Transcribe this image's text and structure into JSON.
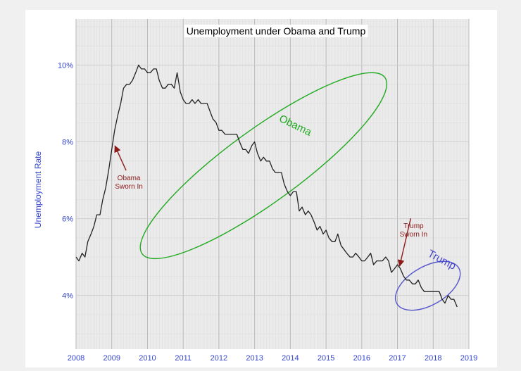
{
  "chart_data": {
    "type": "line",
    "title": "Unemployment under Obama and Trump",
    "xlabel": "",
    "ylabel": "Unemployment Rate",
    "xlim": [
      2008.0,
      2019.0
    ],
    "ylim": [
      2.6,
      11.2
    ],
    "x_ticks": [
      2008,
      2009,
      2010,
      2011,
      2012,
      2013,
      2014,
      2015,
      2016,
      2017,
      2018,
      2019
    ],
    "y_ticks": [
      {
        "value": 4,
        "label": "4%"
      },
      {
        "value": 6,
        "label": "6%"
      },
      {
        "value": 8,
        "label": "8%"
      },
      {
        "value": 10,
        "label": "10%"
      }
    ],
    "grid": true,
    "series": [
      {
        "values": [
          [
            2008.0,
            5.0
          ],
          [
            2008.08,
            4.9
          ],
          [
            2008.17,
            5.1
          ],
          [
            2008.25,
            5.0
          ],
          [
            2008.33,
            5.4
          ],
          [
            2008.42,
            5.6
          ],
          [
            2008.5,
            5.8
          ],
          [
            2008.58,
            6.1
          ],
          [
            2008.67,
            6.1
          ],
          [
            2008.75,
            6.5
          ],
          [
            2008.83,
            6.8
          ],
          [
            2008.92,
            7.3
          ],
          [
            2009.0,
            7.8
          ],
          [
            2009.08,
            8.3
          ],
          [
            2009.17,
            8.7
          ],
          [
            2009.25,
            9.0
          ],
          [
            2009.33,
            9.4
          ],
          [
            2009.42,
            9.5
          ],
          [
            2009.5,
            9.5
          ],
          [
            2009.58,
            9.6
          ],
          [
            2009.67,
            9.8
          ],
          [
            2009.75,
            10.0
          ],
          [
            2009.83,
            9.9
          ],
          [
            2009.92,
            9.9
          ],
          [
            2010.0,
            9.8
          ],
          [
            2010.08,
            9.8
          ],
          [
            2010.17,
            9.9
          ],
          [
            2010.25,
            9.9
          ],
          [
            2010.33,
            9.6
          ],
          [
            2010.42,
            9.4
          ],
          [
            2010.5,
            9.4
          ],
          [
            2010.58,
            9.5
          ],
          [
            2010.67,
            9.5
          ],
          [
            2010.75,
            9.4
          ],
          [
            2010.83,
            9.8
          ],
          [
            2010.92,
            9.3
          ],
          [
            2011.0,
            9.1
          ],
          [
            2011.08,
            9.0
          ],
          [
            2011.17,
            9.0
          ],
          [
            2011.25,
            9.1
          ],
          [
            2011.33,
            9.0
          ],
          [
            2011.42,
            9.1
          ],
          [
            2011.5,
            9.0
          ],
          [
            2011.58,
            9.0
          ],
          [
            2011.67,
            9.0
          ],
          [
            2011.75,
            8.8
          ],
          [
            2011.83,
            8.6
          ],
          [
            2011.92,
            8.5
          ],
          [
            2012.0,
            8.3
          ],
          [
            2012.08,
            8.3
          ],
          [
            2012.17,
            8.2
          ],
          [
            2012.25,
            8.2
          ],
          [
            2012.33,
            8.2
          ],
          [
            2012.42,
            8.2
          ],
          [
            2012.5,
            8.2
          ],
          [
            2012.58,
            8.0
          ],
          [
            2012.67,
            7.8
          ],
          [
            2012.75,
            7.8
          ],
          [
            2012.83,
            7.7
          ],
          [
            2012.92,
            7.9
          ],
          [
            2013.0,
            8.0
          ],
          [
            2013.08,
            7.7
          ],
          [
            2013.17,
            7.5
          ],
          [
            2013.25,
            7.6
          ],
          [
            2013.33,
            7.5
          ],
          [
            2013.42,
            7.5
          ],
          [
            2013.5,
            7.3
          ],
          [
            2013.58,
            7.2
          ],
          [
            2013.67,
            7.2
          ],
          [
            2013.75,
            7.2
          ],
          [
            2013.83,
            6.9
          ],
          [
            2013.92,
            6.7
          ],
          [
            2014.0,
            6.6
          ],
          [
            2014.08,
            6.7
          ],
          [
            2014.17,
            6.7
          ],
          [
            2014.25,
            6.2
          ],
          [
            2014.33,
            6.3
          ],
          [
            2014.42,
            6.1
          ],
          [
            2014.5,
            6.2
          ],
          [
            2014.58,
            6.1
          ],
          [
            2014.67,
            5.9
          ],
          [
            2014.75,
            5.7
          ],
          [
            2014.83,
            5.8
          ],
          [
            2014.92,
            5.6
          ],
          [
            2015.0,
            5.7
          ],
          [
            2015.08,
            5.5
          ],
          [
            2015.17,
            5.4
          ],
          [
            2015.25,
            5.4
          ],
          [
            2015.33,
            5.6
          ],
          [
            2015.42,
            5.3
          ],
          [
            2015.5,
            5.2
          ],
          [
            2015.58,
            5.1
          ],
          [
            2015.67,
            5.0
          ],
          [
            2015.75,
            5.0
          ],
          [
            2015.83,
            5.1
          ],
          [
            2015.92,
            5.0
          ],
          [
            2016.0,
            4.9
          ],
          [
            2016.08,
            4.9
          ],
          [
            2016.17,
            5.0
          ],
          [
            2016.25,
            5.1
          ],
          [
            2016.33,
            4.8
          ],
          [
            2016.42,
            4.9
          ],
          [
            2016.5,
            4.9
          ],
          [
            2016.58,
            4.9
          ],
          [
            2016.67,
            5.0
          ],
          [
            2016.75,
            4.9
          ],
          [
            2016.83,
            4.6
          ],
          [
            2016.92,
            4.7
          ],
          [
            2017.0,
            4.8
          ],
          [
            2017.08,
            4.7
          ],
          [
            2017.17,
            4.5
          ],
          [
            2017.25,
            4.4
          ],
          [
            2017.33,
            4.4
          ],
          [
            2017.42,
            4.3
          ],
          [
            2017.5,
            4.3
          ],
          [
            2017.58,
            4.4
          ],
          [
            2017.67,
            4.2
          ],
          [
            2017.75,
            4.1
          ],
          [
            2017.83,
            4.1
          ],
          [
            2017.92,
            4.1
          ],
          [
            2018.0,
            4.1
          ],
          [
            2018.08,
            4.1
          ],
          [
            2018.17,
            4.1
          ],
          [
            2018.25,
            3.9
          ],
          [
            2018.33,
            3.8
          ],
          [
            2018.42,
            4.0
          ],
          [
            2018.5,
            3.9
          ],
          [
            2018.58,
            3.9
          ],
          [
            2018.67,
            3.7
          ]
        ]
      }
    ],
    "annotations": [
      {
        "lines": [
          "Obama",
          "Sworn In"
        ],
        "point_to": [
          2009.05,
          7.95
        ],
        "text_at": [
          2009.48,
          7.0
        ],
        "color": "#8b1a1a"
      },
      {
        "lines": [
          "Trump",
          "Sworn In"
        ],
        "point_to": [
          2017.0,
          4.8
        ],
        "text_at": [
          2017.45,
          5.75
        ],
        "color": "#8b1a1a"
      }
    ],
    "region_labels": [
      {
        "text": "Obama",
        "at": [
          2014.1,
          8.35
        ],
        "rotate": 26,
        "color": "#22aa22"
      },
      {
        "text": "Trump",
        "at": [
          2018.2,
          4.85
        ],
        "rotate": 28,
        "color": "#4444cc"
      }
    ],
    "ellipses": [
      {
        "cx": 2013.25,
        "cy": 7.38,
        "rx": 4.2,
        "ry": 0.95,
        "angle": -36,
        "color": "#22aa22"
      },
      {
        "cx": 2017.85,
        "cy": 4.25,
        "rx": 1.0,
        "ry": 0.5,
        "angle": -30,
        "color": "#5555cc"
      }
    ],
    "colors": {
      "line": "#222222",
      "tick_label": "#3344cc",
      "ylabel": "#3344cc",
      "panel": "#ebebeb",
      "grid_major": "#cfcfcf",
      "grid_minor": "#dcdcdc"
    }
  }
}
